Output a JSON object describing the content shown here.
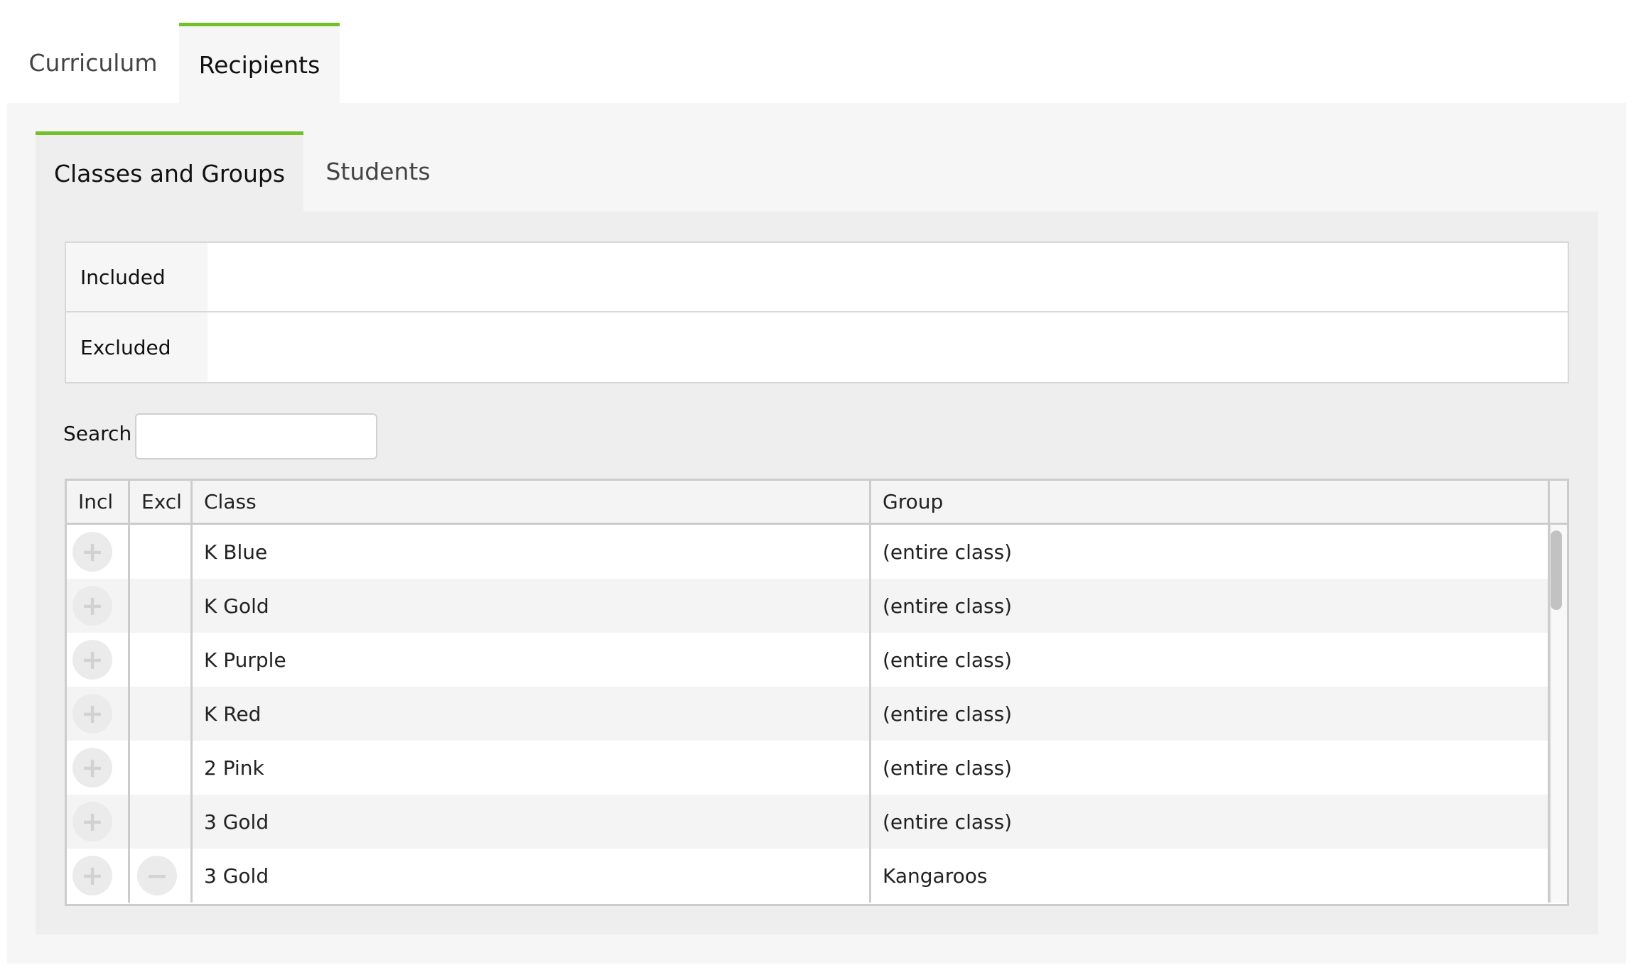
{
  "top_tabs": [
    {
      "label": "Curriculum",
      "active": false
    },
    {
      "label": "Recipients",
      "active": true
    }
  ],
  "sub_tabs": [
    {
      "label": "Classes and Groups",
      "active": true
    },
    {
      "label": "Students",
      "active": false
    }
  ],
  "accent_color": "#75c02a",
  "selection": {
    "included_label": "Included",
    "included_value": "",
    "excluded_label": "Excluded",
    "excluded_value": ""
  },
  "search": {
    "label": "Search",
    "value": "",
    "placeholder": ""
  },
  "table": {
    "headers": {
      "incl": "Incl",
      "excl": "Excl",
      "class": "Class",
      "group": "Group"
    },
    "rows": [
      {
        "class": "K Blue",
        "group": "(entire class)",
        "incl_icon": "plus-icon",
        "excl_icon": null
      },
      {
        "class": "K Gold",
        "group": "(entire class)",
        "incl_icon": "plus-icon",
        "excl_icon": null
      },
      {
        "class": "K Purple",
        "group": "(entire class)",
        "incl_icon": "plus-icon",
        "excl_icon": null
      },
      {
        "class": "K Red",
        "group": "(entire class)",
        "incl_icon": "plus-icon",
        "excl_icon": null
      },
      {
        "class": "2 Pink",
        "group": "(entire class)",
        "incl_icon": "plus-icon",
        "excl_icon": null
      },
      {
        "class": "3 Gold",
        "group": "(entire class)",
        "incl_icon": "plus-icon",
        "excl_icon": null
      },
      {
        "class": "3 Gold",
        "group": "Kangaroos",
        "incl_icon": "plus-icon",
        "excl_icon": "minus-icon"
      }
    ]
  }
}
